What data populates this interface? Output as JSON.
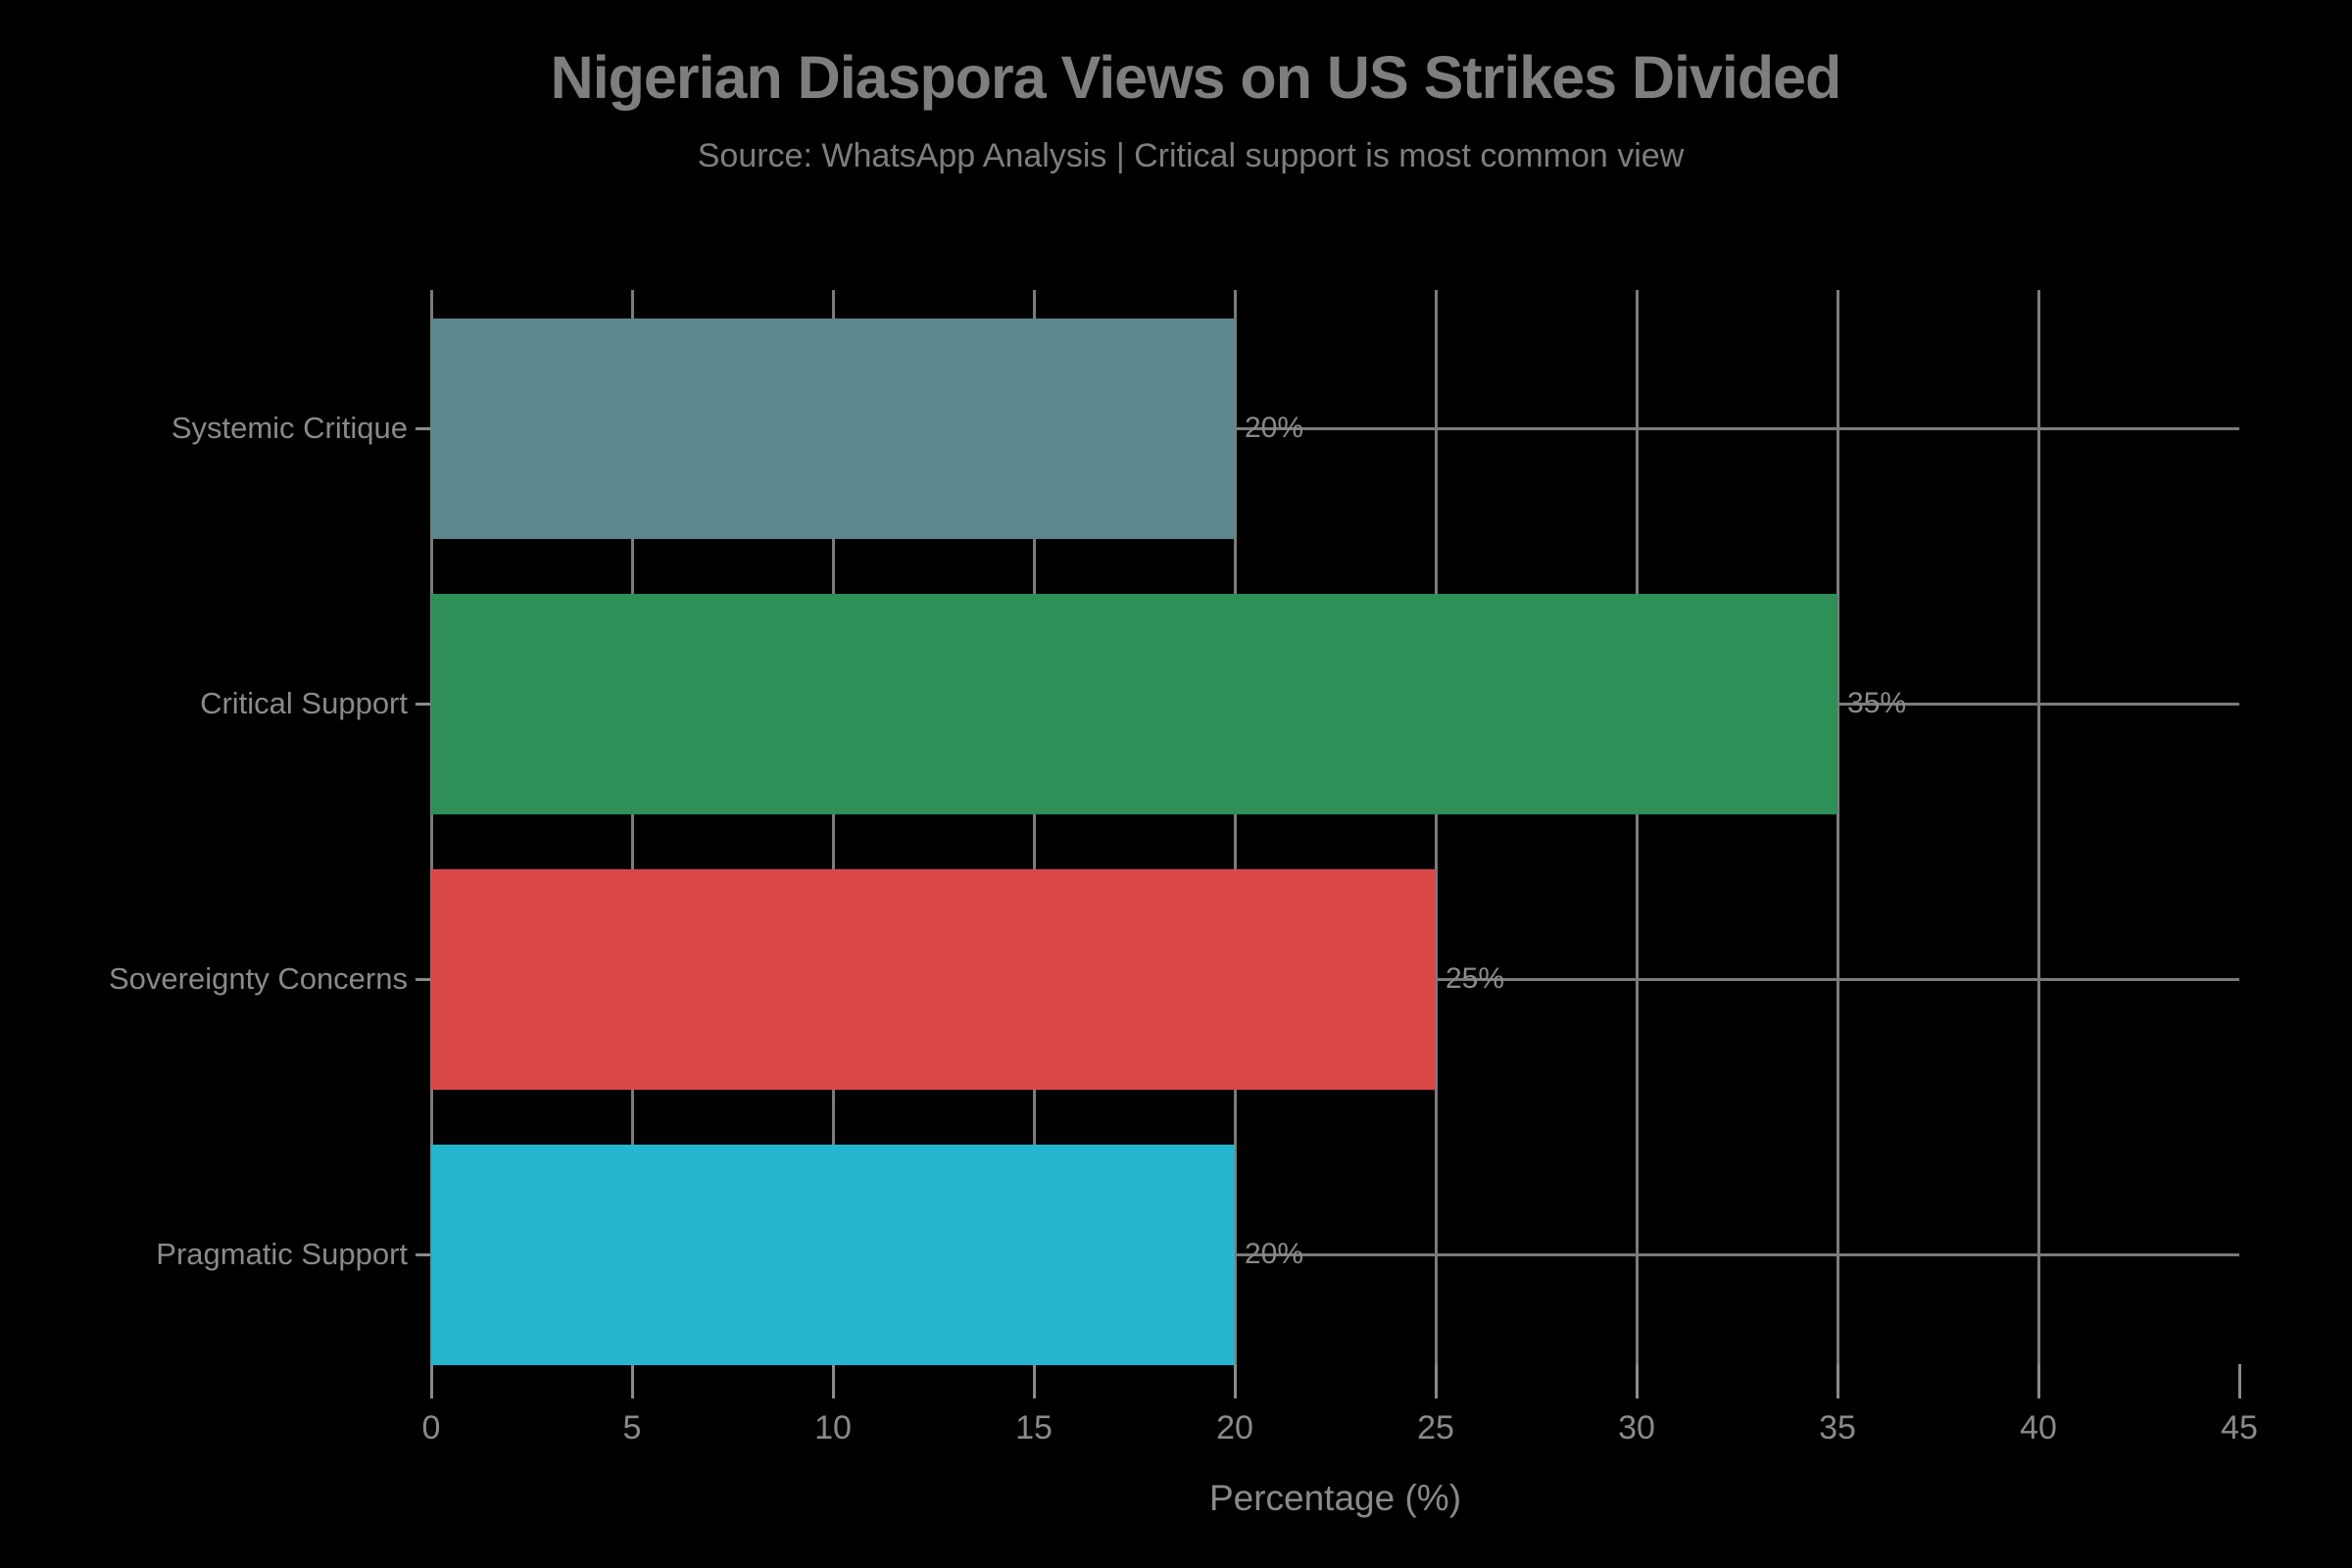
{
  "header": {
    "title": "Nigerian Diaspora Views on US Strikes Divided",
    "subtitle": "Source: WhatsApp Analysis | Critical support is most common view"
  },
  "chart_data": {
    "type": "bar",
    "orientation": "horizontal",
    "title": "Nigerian Diaspora Views on US Strikes Divided",
    "subtitle": "Source: WhatsApp Analysis | Critical support is most common view",
    "categories": [
      "Systemic Critique",
      "Critical Support",
      "Sovereignty Concerns",
      "Pragmatic Support"
    ],
    "values": [
      20,
      35,
      25,
      20
    ],
    "value_labels": [
      "20%",
      "35%",
      "25%",
      "20%"
    ],
    "bar_colors": [
      "#5B878E",
      "#2E8F57",
      "#D94747",
      "#23B6CE"
    ],
    "xlabel": "Percentage (%)",
    "ylabel": "",
    "xlim": [
      0,
      45
    ],
    "xticks": [
      0,
      5,
      10,
      15,
      20,
      25,
      30,
      35,
      40,
      45
    ],
    "grid": true,
    "legend": "none",
    "background_color": "#000000",
    "text_color": "#8A8A8A",
    "grid_color": "#7B7B7B"
  }
}
